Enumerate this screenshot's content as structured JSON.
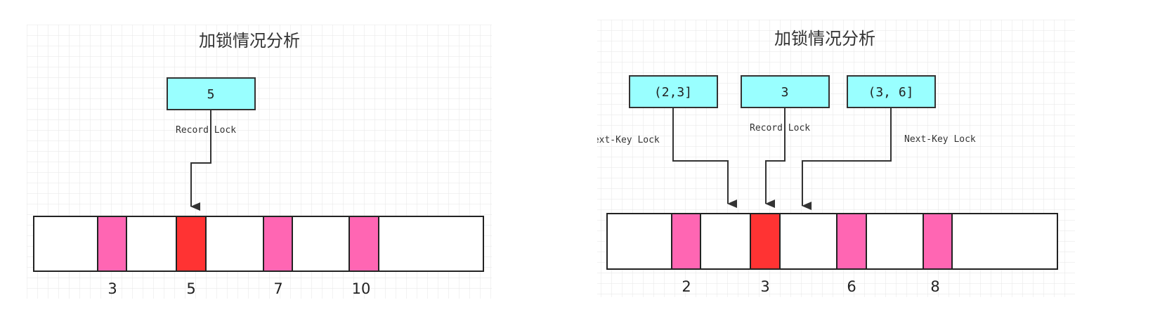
{
  "colors": {
    "lock_box_fill": "#99FFFF",
    "index_record_fill": "#FF66B3",
    "locked_record_fill": "#FF3333",
    "grid_line": "#e6e6e6",
    "stroke": "#333333"
  },
  "left": {
    "title": "加锁情况分析",
    "lock_boxes": [
      {
        "label": "5",
        "lock_type": "Record Lock"
      }
    ],
    "index_keys": [
      "3",
      "5",
      "7",
      "10"
    ],
    "locked_key": "5"
  },
  "right": {
    "title": "加锁情况分析",
    "lock_boxes": [
      {
        "label": "(2,3]",
        "lock_type": "Next-Key Lock"
      },
      {
        "label": "3",
        "lock_type": "Record Lock"
      },
      {
        "label": "(3, 6]",
        "lock_type": "Next-Key Lock"
      }
    ],
    "index_keys": [
      "2",
      "3",
      "6",
      "8"
    ],
    "locked_key": "3"
  }
}
